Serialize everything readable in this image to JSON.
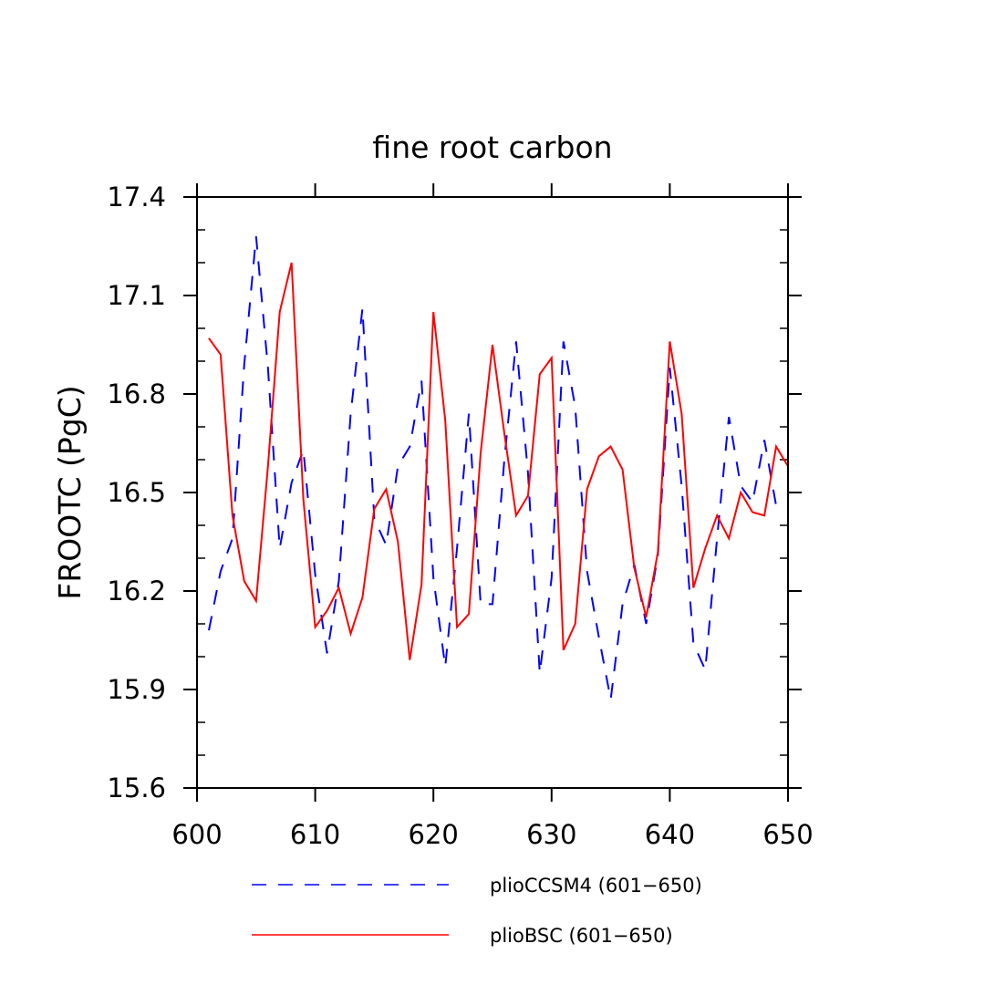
{
  "chart_data": {
    "type": "line",
    "title": "fine root carbon",
    "xlabel": "",
    "ylabel": "FROOTC  (PgC)",
    "xlim": [
      600,
      650
    ],
    "ylim": [
      15.6,
      17.4
    ],
    "xticks": [
      600,
      610,
      620,
      630,
      640,
      650
    ],
    "xtick_labels": [
      "600",
      "610",
      "620",
      "630",
      "640",
      "650"
    ],
    "yticks": [
      15.6,
      15.9,
      16.2,
      16.5,
      16.8,
      17.1,
      17.4
    ],
    "ytick_labels": [
      "15.6",
      "15.9",
      "16.2",
      "16.5",
      "16.8",
      "17.1",
      "17.4"
    ],
    "legend_position": "bottom",
    "x": [
      601,
      602,
      603,
      604,
      605,
      606,
      607,
      608,
      609,
      610,
      611,
      612,
      613,
      614,
      615,
      616,
      617,
      618,
      619,
      620,
      621,
      622,
      623,
      624,
      625,
      626,
      627,
      628,
      629,
      630,
      631,
      632,
      633,
      634,
      635,
      636,
      637,
      638,
      639,
      640,
      641,
      642,
      643,
      644,
      645,
      646,
      647,
      648,
      649,
      650
    ],
    "series": [
      {
        "name": "plioCCSM4 (601−650)",
        "color": "#0000ff",
        "dash": "dashed",
        "values": [
          16.08,
          16.26,
          16.36,
          16.89,
          17.28,
          16.88,
          16.33,
          16.53,
          16.63,
          16.25,
          16.01,
          16.23,
          16.74,
          17.06,
          16.42,
          16.34,
          16.58,
          16.64,
          16.84,
          16.24,
          15.97,
          16.33,
          16.74,
          16.16,
          16.16,
          16.6,
          16.96,
          16.56,
          15.95,
          16.24,
          16.96,
          16.76,
          16.26,
          16.06,
          15.87,
          16.16,
          16.28,
          16.1,
          16.31,
          16.88,
          16.52,
          16.04,
          15.96,
          16.36,
          16.73,
          16.52,
          16.47,
          16.66,
          16.46,
          null
        ]
      },
      {
        "name": "plioBSC (601−650)",
        "color": "#ff0000",
        "dash": "solid",
        "values": [
          16.97,
          16.92,
          16.43,
          16.23,
          16.17,
          16.58,
          17.05,
          17.2,
          16.48,
          16.09,
          16.14,
          16.21,
          16.07,
          16.18,
          16.45,
          16.51,
          16.35,
          15.99,
          16.22,
          17.05,
          16.72,
          16.09,
          16.13,
          16.62,
          16.95,
          16.68,
          16.43,
          16.49,
          16.86,
          16.91,
          16.02,
          16.1,
          16.51,
          16.61,
          16.64,
          16.57,
          16.27,
          16.12,
          16.32,
          16.96,
          16.74,
          16.21,
          16.33,
          16.43,
          16.36,
          16.5,
          16.44,
          16.43,
          16.64,
          16.58
        ]
      }
    ]
  }
}
